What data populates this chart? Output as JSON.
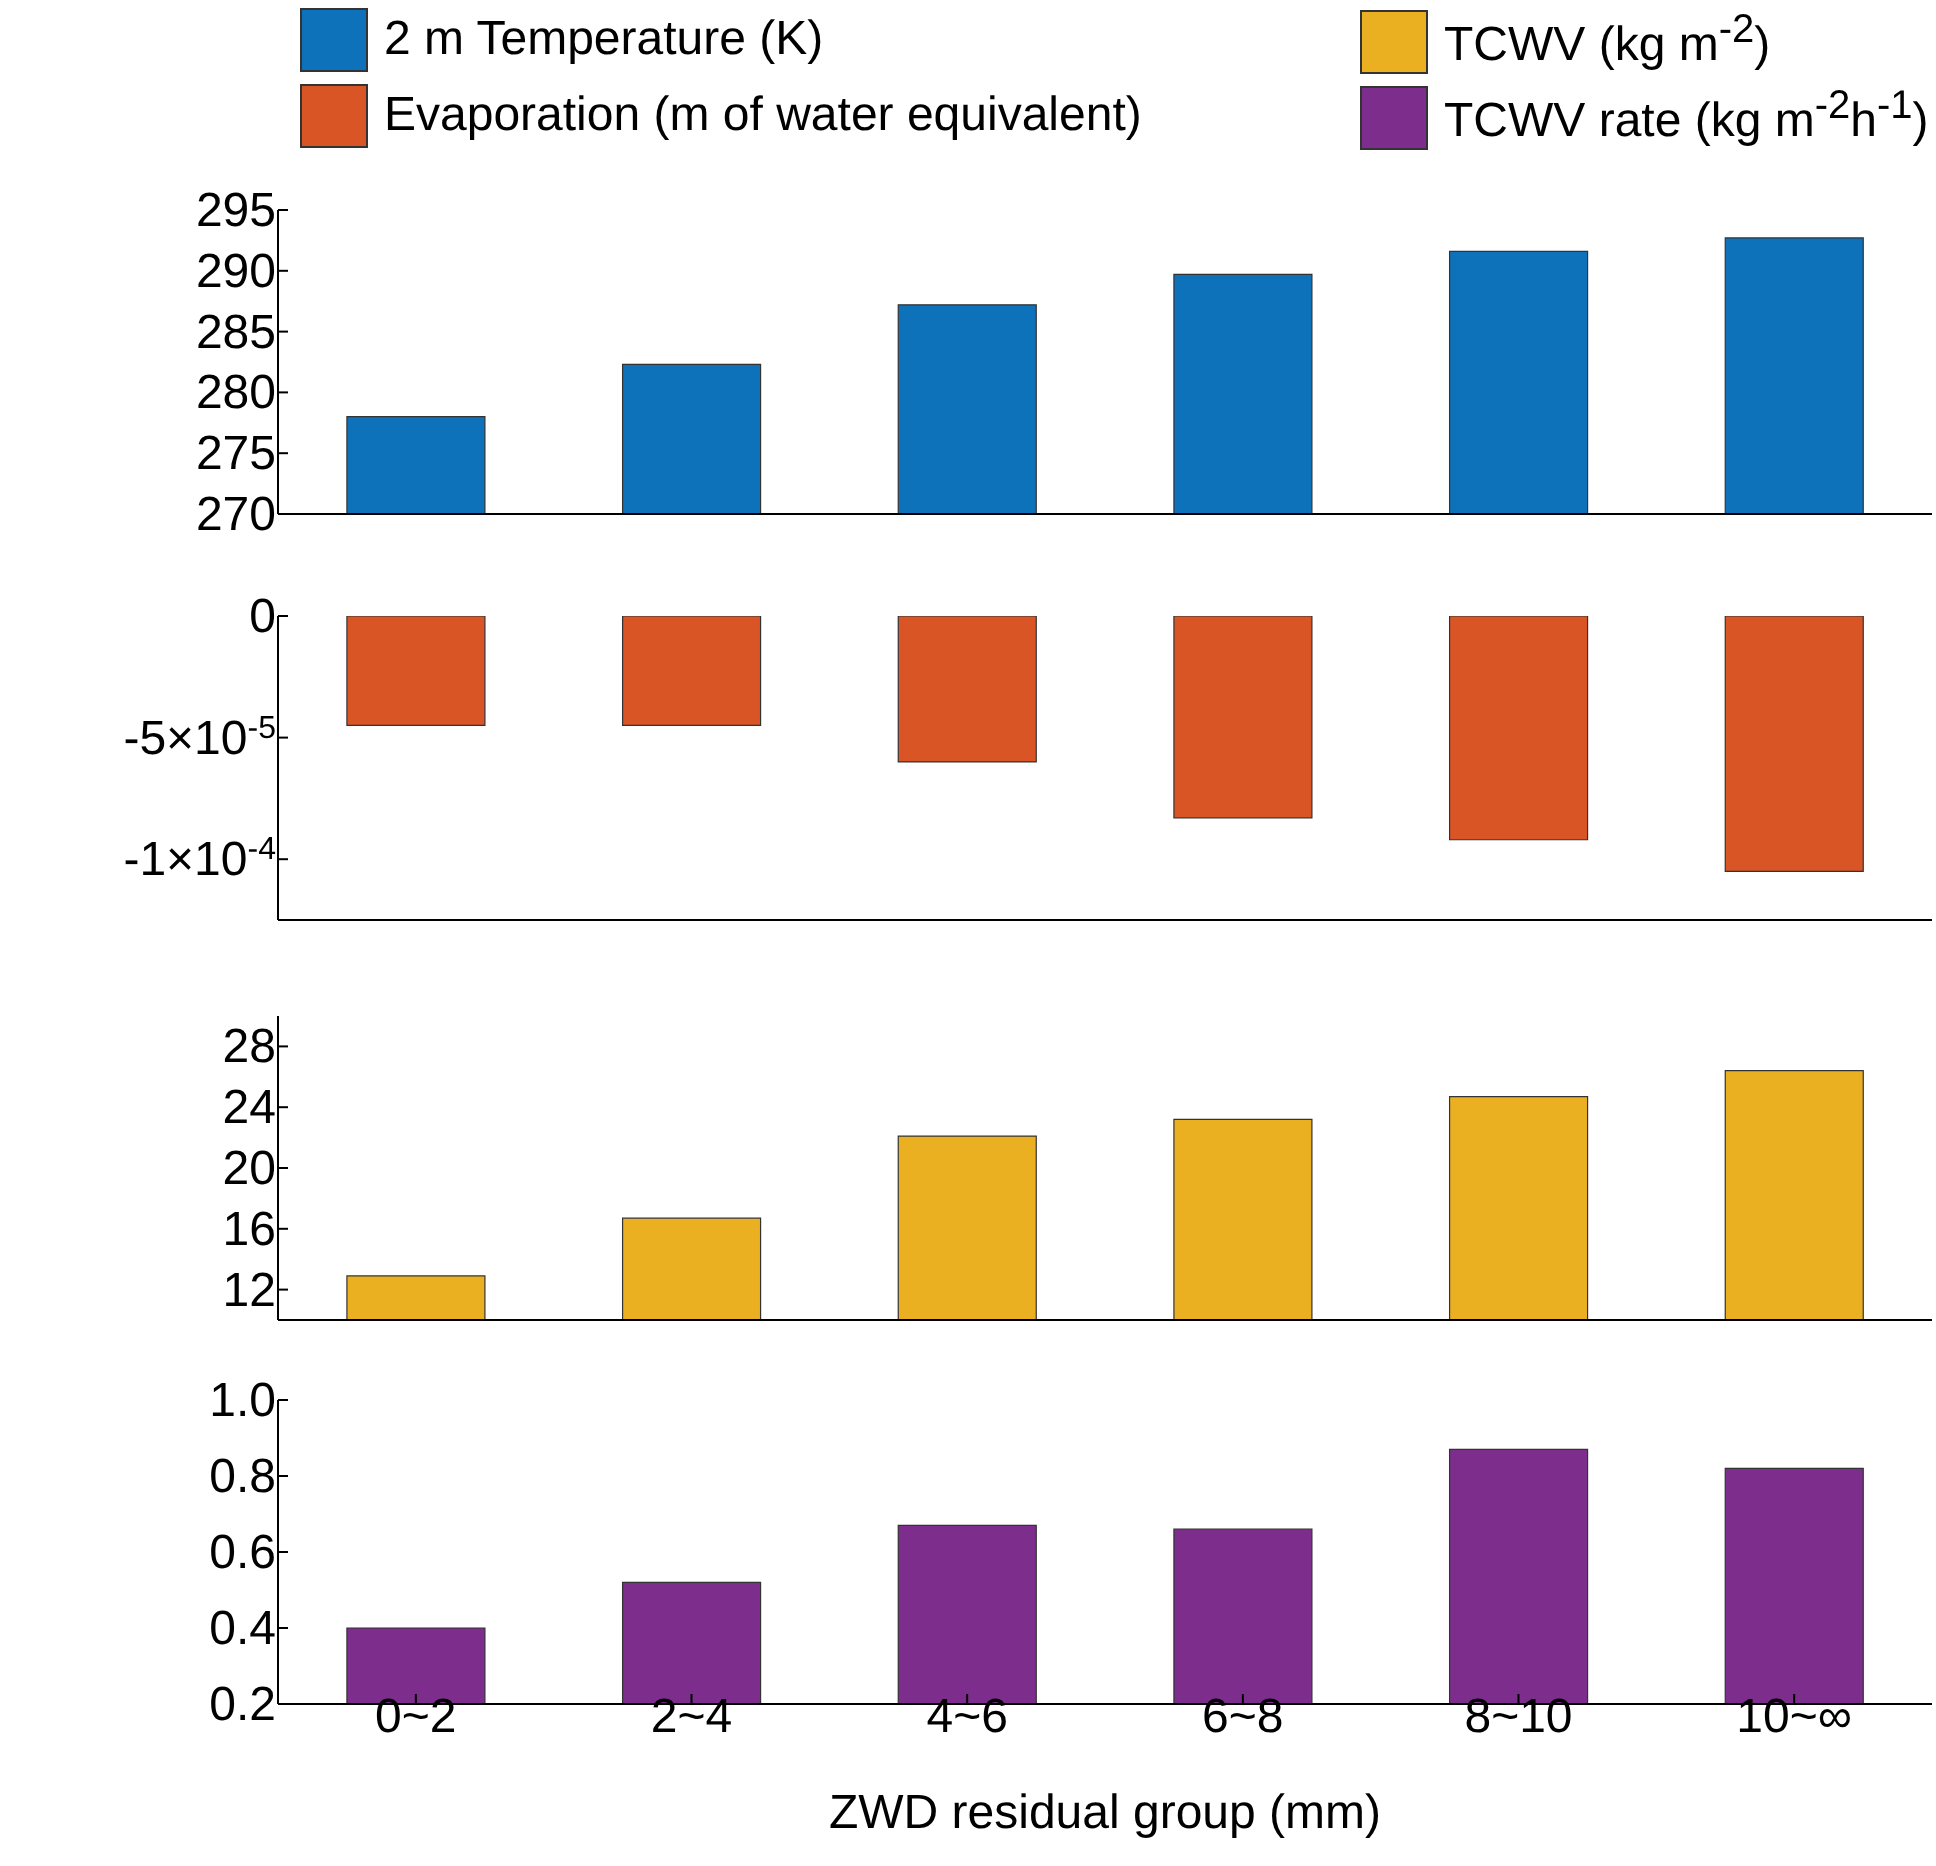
{
  "chart_data": [
    {
      "type": "bar",
      "categories": [
        null,
        null,
        null,
        null,
        null,
        null
      ],
      "series": [
        {
          "name": "2 m Temperature (K)",
          "color": "#0e72bb",
          "values": [
            278.0,
            282.3,
            287.2,
            289.7,
            291.6,
            292.7
          ]
        }
      ],
      "ylim": [
        270,
        295
      ],
      "yticks": [
        270,
        275,
        280,
        285,
        290,
        295
      ],
      "tick_labels": "y",
      "legend": "top"
    },
    {
      "type": "bar",
      "categories": [
        null,
        null,
        null,
        null,
        null,
        null
      ],
      "series": [
        {
          "name": "Evaporation (m of water equivalent)",
          "color": "#d95526",
          "values": [
            -4.5e-05,
            -4.5e-05,
            -6e-05,
            -8.3e-05,
            -9.2e-05,
            -0.000105
          ]
        }
      ],
      "ylim": [
        -0.000125,
        0
      ],
      "yticks": [
        {
          "value": -0.0001,
          "label": "-1×10$^{-4}$"
        },
        {
          "value": -5e-05,
          "label": "-5×10$^{-5}$"
        },
        0
      ],
      "tick_labels": "y",
      "legend": "top"
    },
    {
      "type": "bar",
      "categories": [
        null,
        null,
        null,
        null,
        null,
        null
      ],
      "series": [
        {
          "name": "TCWV (kg m$^{-2}$)",
          "color": "#ebb022",
          "values": [
            12.9,
            16.7,
            22.1,
            23.2,
            24.7,
            26.4
          ]
        }
      ],
      "ylim": [
        10,
        30
      ],
      "yticks": [
        12,
        16,
        20,
        24,
        28
      ],
      "tick_labels": "y",
      "legend": "top"
    },
    {
      "type": "bar",
      "categories": [
        "0~2",
        "2~4",
        "4~6",
        "6~8",
        "8~10",
        "10~∞"
      ],
      "series": [
        {
          "name": "TCWV rate (kg m$^{-2}$h$^{-1}$)",
          "color": "#7d2e8c",
          "values": [
            0.4,
            0.52,
            0.67,
            0.66,
            0.87,
            0.82
          ]
        }
      ],
      "xlabel": "ZWD residual group (mm)",
      "ylim": [
        0.2,
        1.0
      ],
      "yticks": [
        0.2,
        0.4,
        0.6,
        0.8,
        {
          "value": 1,
          "label": "1.0"
        }
      ],
      "legend": "top"
    }
  ]
}
